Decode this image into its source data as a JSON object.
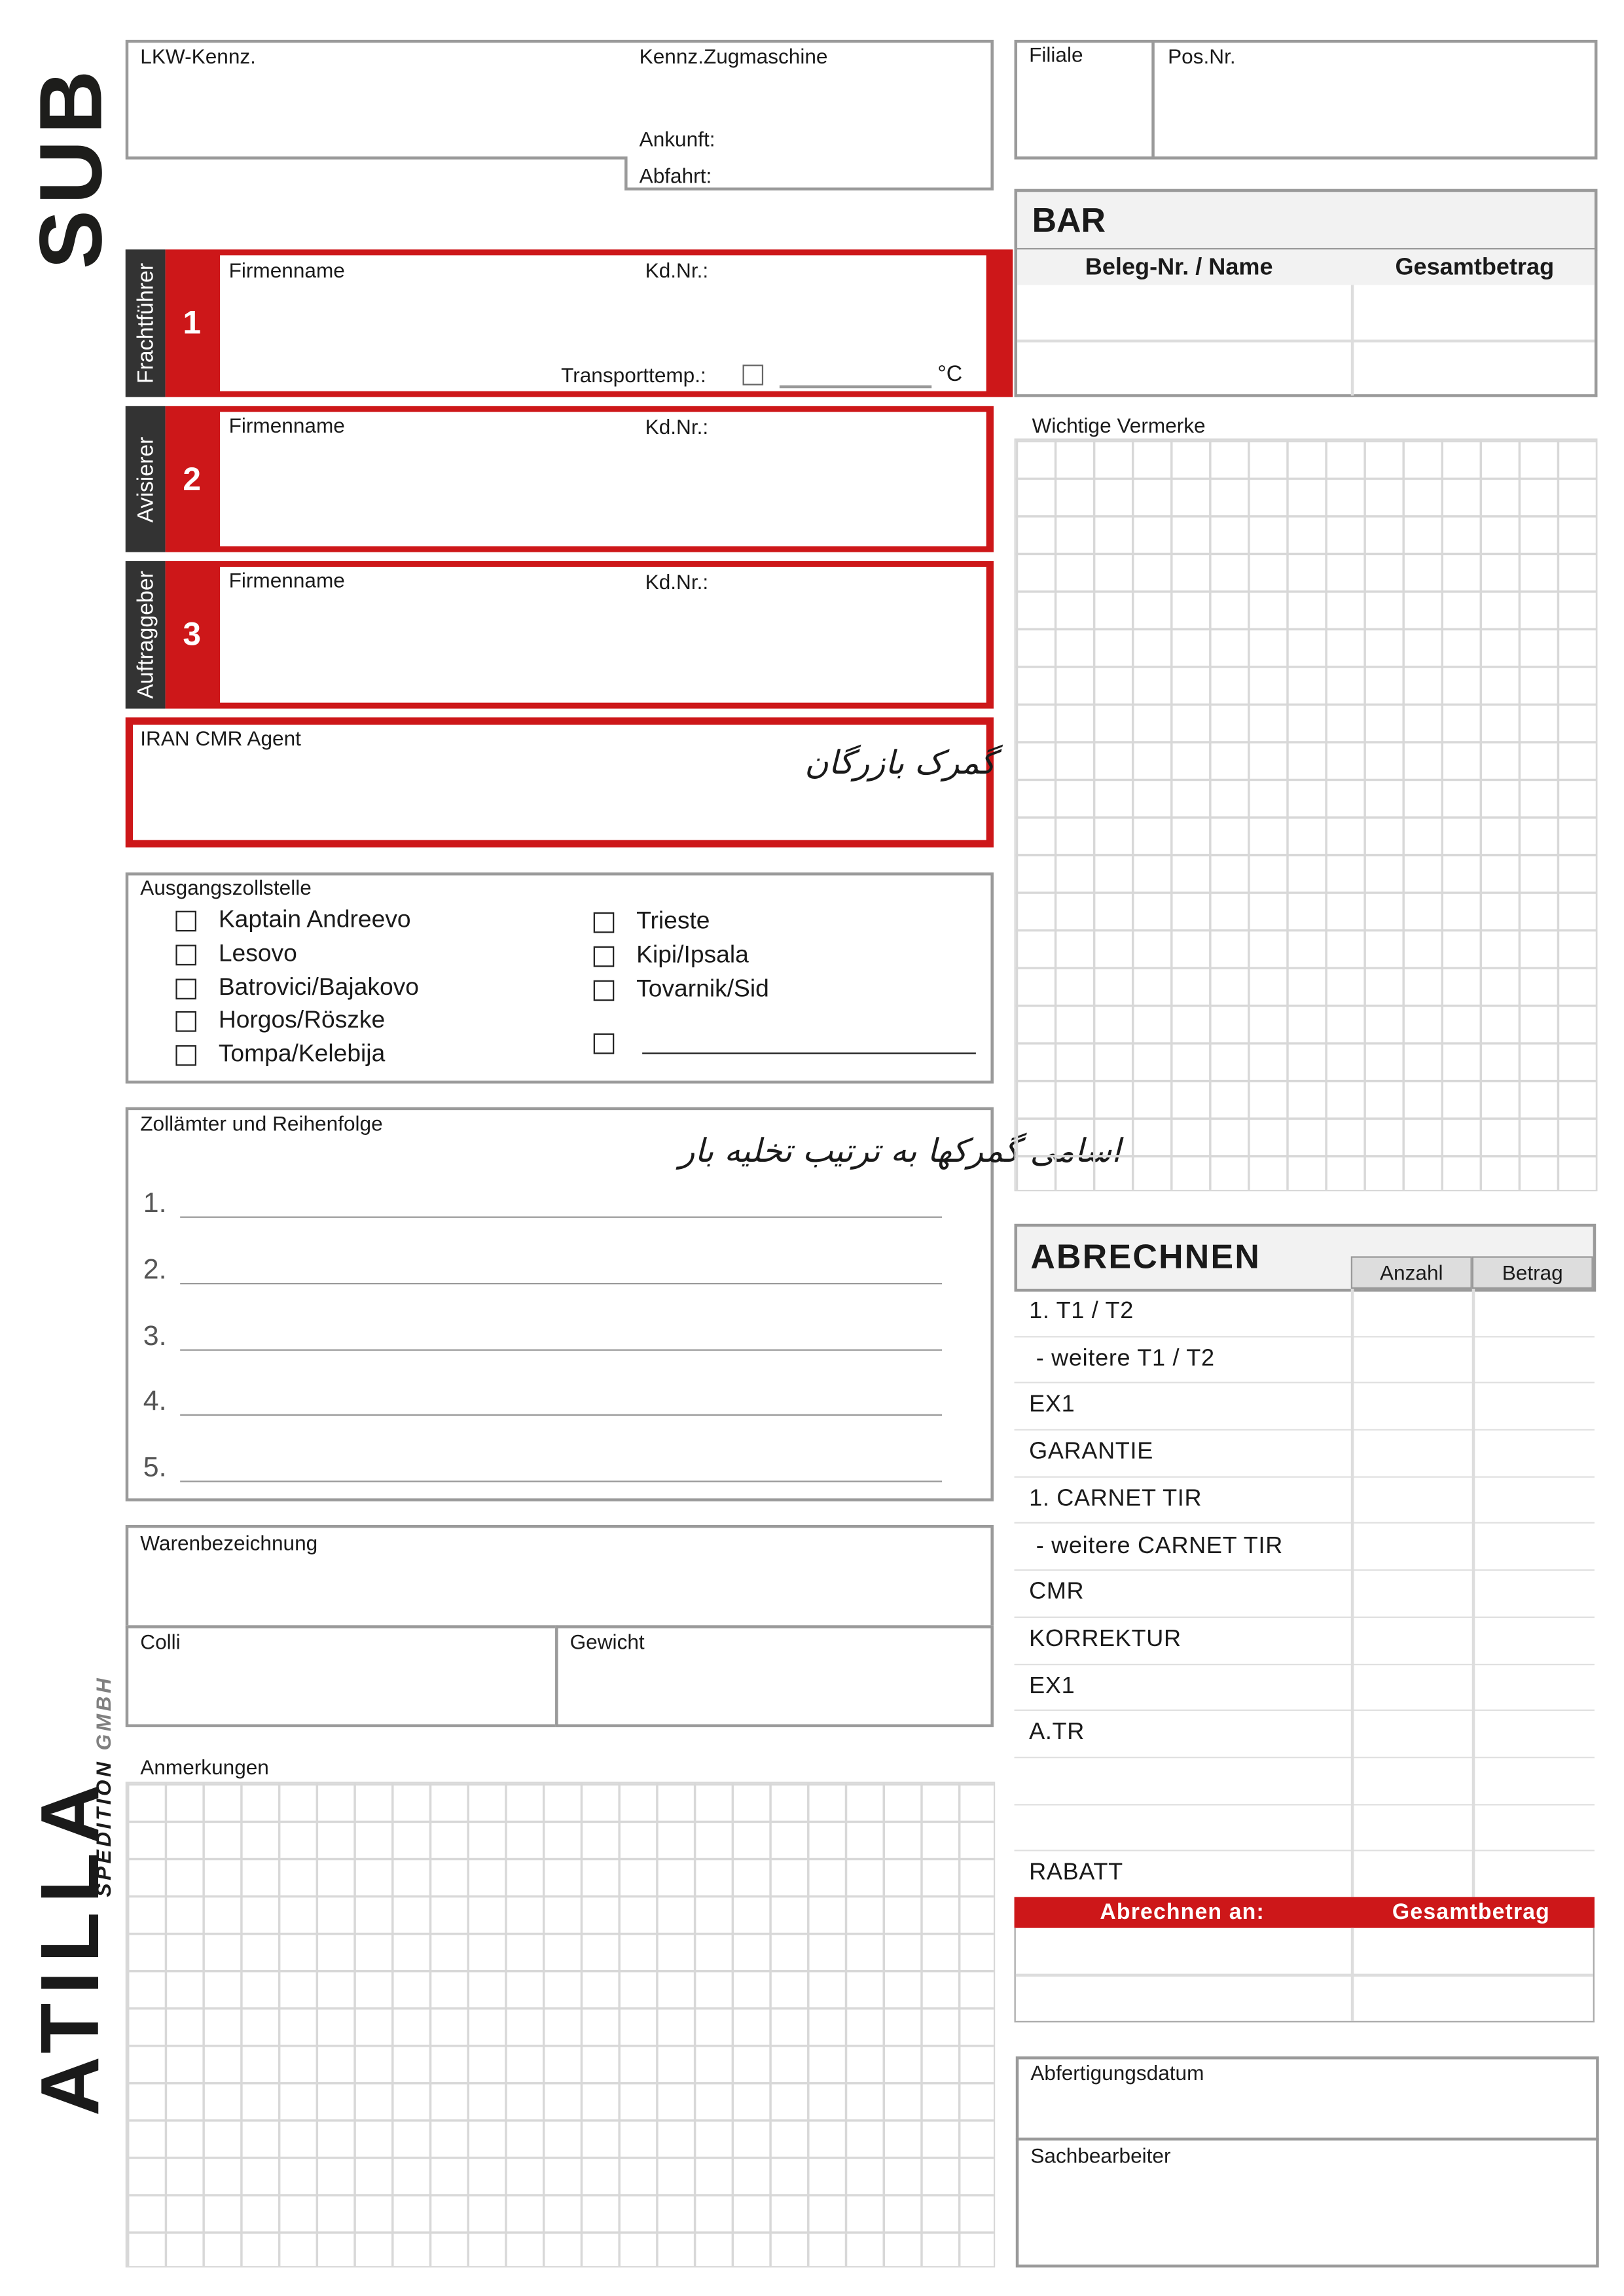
{
  "branding": {
    "sub_logo": "SUB",
    "company_logo": "ATILLA",
    "company_sub": "SPEDITION",
    "company_suffix": "GMBH"
  },
  "vehicle": {
    "lkw_label": "LKW-Kennz.",
    "tractor_label": "Kennz.Zugmaschine",
    "arrival_label": "Ankunft:",
    "departure_label": "Abfahrt:"
  },
  "branch": {
    "filiale_label": "Filiale",
    "pos_label": "Pos.Nr."
  },
  "parties": [
    {
      "role": "Frachtführer",
      "number": "1",
      "company_label": "Firmenname",
      "customer_label": "Kd.Nr.:",
      "temp_label": "Transporttemp.:",
      "temp_unit": "°C"
    },
    {
      "role": "Avisierer",
      "number": "2",
      "company_label": "Firmenname",
      "customer_label": "Kd.Nr.:"
    },
    {
      "role": "Auftraggeber",
      "number": "3",
      "company_label": "Firmenname",
      "customer_label": "Kd.Nr.:"
    }
  ],
  "agent": {
    "label": "IRAN CMR Agent",
    "handwritten": "گمرک بازرگان"
  },
  "exit_customs": {
    "label": "Ausgangszollstelle",
    "left_options": [
      "Kaptain Andreevo",
      "Lesovo",
      "Batrovici/Bajakovo",
      "Horgos/Röszke",
      "Tompa/Kelebija"
    ],
    "right_options": [
      "Trieste",
      "Kipi/Ipsala",
      "Tovarnik/Sid"
    ]
  },
  "customs_offices": {
    "label": "Zollämter und Reihenfolge",
    "handwritten": "اسامی گمرکها به ترتیب تخلیه بار",
    "items": [
      "1.",
      "2.",
      "3.",
      "4.",
      "5."
    ]
  },
  "goods": {
    "description_label": "Warenbezeichnung",
    "colli_label": "Colli",
    "weight_label": "Gewicht",
    "remarks_label": "Anmerkungen"
  },
  "bar": {
    "title": "BAR",
    "col1": "Beleg-Nr. / Name",
    "col2": "Gesamtbetrag"
  },
  "notes": {
    "label": "Wichtige Vermerke"
  },
  "billing": {
    "title": "ABRECHNEN",
    "col_count": "Anzahl",
    "col_amount": "Betrag",
    "rows": [
      "1. T1 / T2",
      " - weitere T1 / T2",
      "EX1",
      "GARANTIE",
      "1. CARNET TIR",
      " - weitere CARNET TIR",
      "CMR",
      "KORREKTUR",
      "EX1",
      "A.TR",
      "",
      "",
      "RABATT"
    ],
    "bill_to_label": "Abrechnen an:",
    "total_label": "Gesamtbetrag"
  },
  "footer": {
    "date_label": "Abfertigungsdatum",
    "clerk_label": "Sachbearbeiter"
  },
  "colors": {
    "accent_red": "#cd1719",
    "dark": "#333333",
    "border_gray": "#9a9a9a"
  }
}
